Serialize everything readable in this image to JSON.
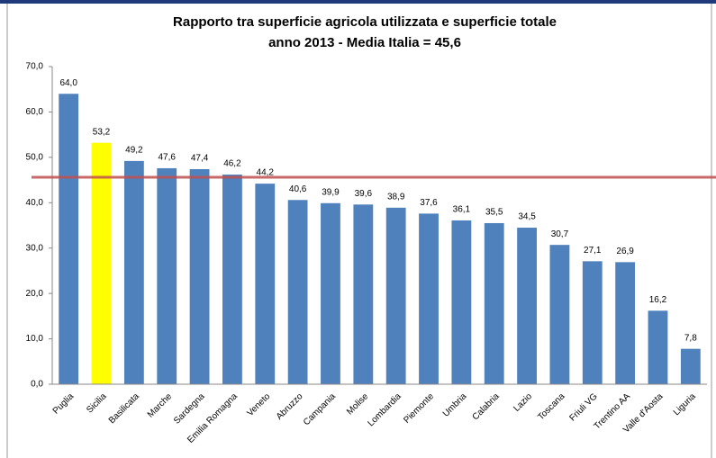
{
  "chart_data": {
    "type": "bar",
    "title": [
      "Rapporto tra superficie agricola utilizzata e superficie totale",
      "anno 2013 - Media Italia = 45,6"
    ],
    "categories": [
      "Puglia",
      "Sicilia",
      "Basilicata",
      "Marche",
      "Sardegna",
      "Emilia Romagna",
      "Veneto",
      "Abruzzo",
      "Campania",
      "Molise",
      "Lombardia",
      "Piemonte",
      "Umbria",
      "Calabria",
      "Lazio",
      "Toscana",
      "Friuli VG",
      "Trentino AA",
      "Valle d'Aosta",
      "Liguria"
    ],
    "values": [
      64.0,
      53.2,
      49.2,
      47.6,
      47.4,
      46.2,
      44.2,
      40.6,
      39.9,
      39.6,
      38.9,
      37.6,
      36.1,
      35.5,
      34.5,
      30.7,
      27.1,
      26.9,
      16.2,
      7.8
    ],
    "value_labels": [
      "64,0",
      "53,2",
      "49,2",
      "47,6",
      "47,4",
      "46,2",
      "44,2",
      "40,6",
      "39,9",
      "39,6",
      "38,9",
      "37,6",
      "36,1",
      "35,5",
      "34,5",
      "30,7",
      "27,1",
      "26,9",
      "16,2",
      "7,8"
    ],
    "colors": [
      "#4f81bd",
      "#ffff00",
      "#4f81bd",
      "#4f81bd",
      "#4f81bd",
      "#4f81bd",
      "#4f81bd",
      "#4f81bd",
      "#4f81bd",
      "#4f81bd",
      "#4f81bd",
      "#4f81bd",
      "#4f81bd",
      "#4f81bd",
      "#4f81bd",
      "#4f81bd",
      "#4f81bd",
      "#4f81bd",
      "#4f81bd",
      "#4f81bd"
    ],
    "average": 45.6,
    "average_color": "#c0504d",
    "ylim": [
      0,
      70
    ],
    "yticks": [
      {
        "value": 0,
        "label": "0,0"
      },
      {
        "value": 10,
        "label": "10,0"
      },
      {
        "value": 20,
        "label": "20,0"
      },
      {
        "value": 30,
        "label": "30,0"
      },
      {
        "value": 40,
        "label": "40,0"
      },
      {
        "value": 50,
        "label": "50,0"
      },
      {
        "value": 60,
        "label": "60,0"
      },
      {
        "value": 70,
        "label": "70,0"
      }
    ],
    "grid": false
  }
}
